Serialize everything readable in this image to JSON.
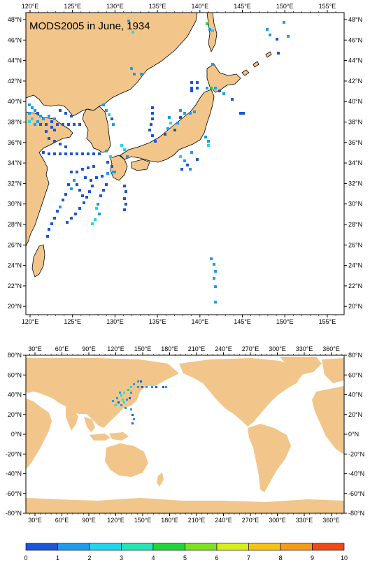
{
  "title": "MODS2005 in June, 1934",
  "colors": {
    "land": "#f2c68a",
    "ocean": "#ffffff",
    "frame": "#000000",
    "scale": [
      "#1d55d8",
      "#1e9bee",
      "#20d6ee",
      "#23e6b4",
      "#22d53a",
      "#7ee21f",
      "#d9ee19",
      "#f5c316",
      "#f59a19",
      "#ee4a16"
    ]
  },
  "top_map": {
    "lon_labels": [
      "120°E",
      "125°E",
      "130°E",
      "135°E",
      "140°E",
      "145°E",
      "150°E",
      "155°E"
    ],
    "lat_labels": [
      "48°N",
      "46°N",
      "44°N",
      "42°N",
      "40°N",
      "38°N",
      "36°N",
      "34°N",
      "32°N",
      "30°N",
      "28°N",
      "26°N",
      "24°N",
      "22°N",
      "20°N"
    ],
    "lon_range": [
      119.5,
      156.5
    ],
    "lat_range": [
      18.8,
      49.6
    ]
  },
  "world_map": {
    "lon_labels": [
      "30°E",
      "60°E",
      "90°E",
      "120°E",
      "150°E",
      "180°E",
      "210°E",
      "240°E",
      "270°E",
      "300°E",
      "330°E",
      "360°E"
    ],
    "lat_labels": [
      "80°N",
      "60°N",
      "40°N",
      "20°N",
      "0°N",
      "-20°N",
      "-40°N",
      "-60°N",
      "-80°N"
    ],
    "lon_range": [
      20,
      375
    ],
    "lat_range": [
      -80,
      80
    ]
  },
  "colorbar": {
    "labels": [
      "0",
      "1",
      "2",
      "3",
      "4",
      "5",
      "6",
      "7",
      "8",
      "9",
      "10"
    ]
  }
}
